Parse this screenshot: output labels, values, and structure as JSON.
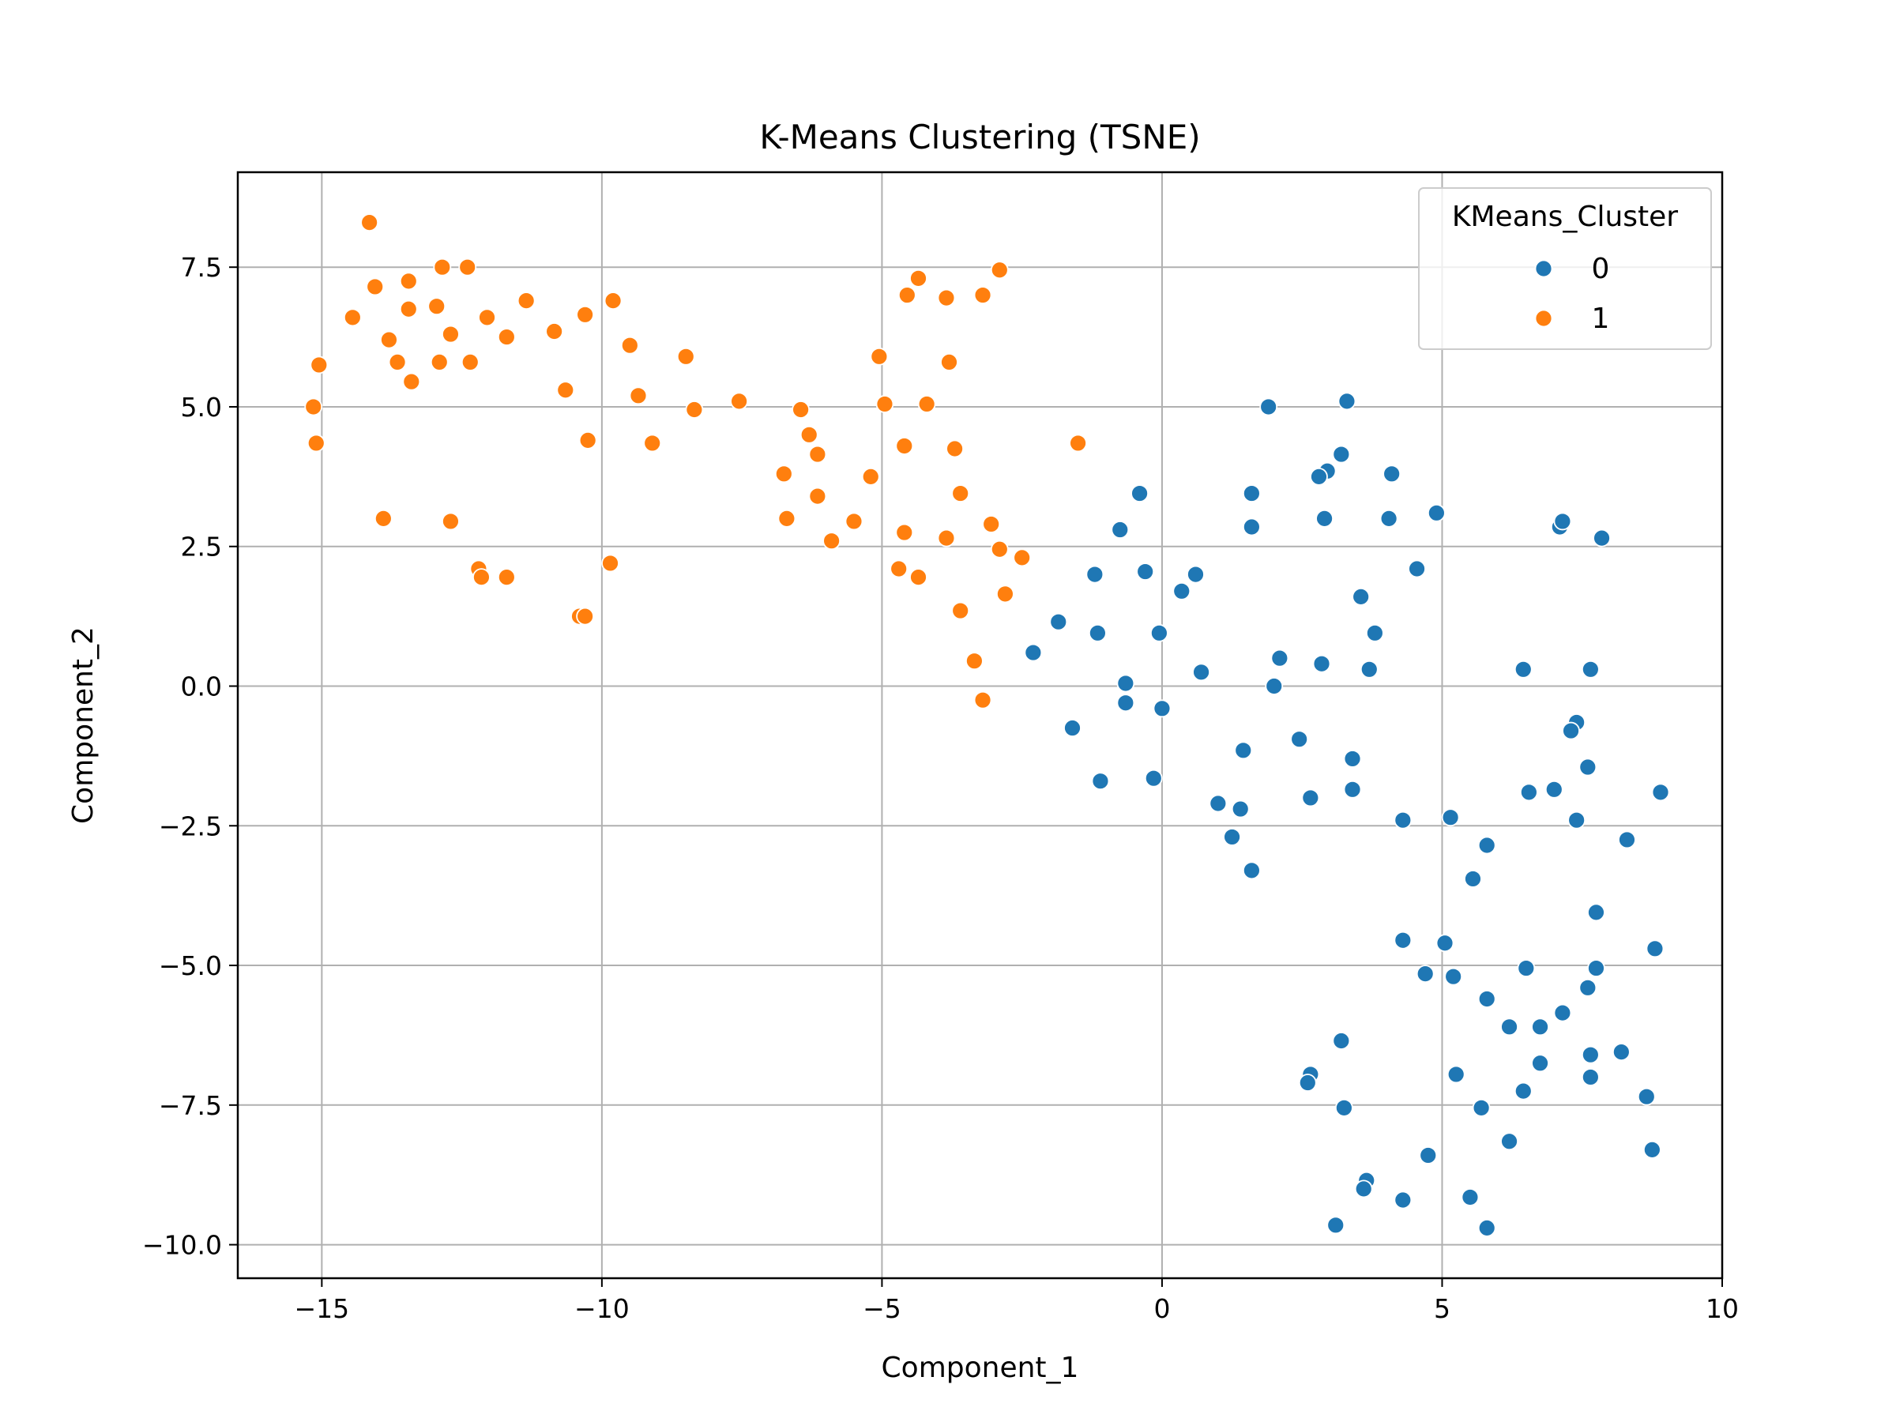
{
  "chart_data": {
    "type": "scatter",
    "title": "K-Means Clustering (TSNE)",
    "xlabel": "Component_1",
    "ylabel": "Component_2",
    "xlim": [
      -16.5,
      10.0
    ],
    "ylim": [
      -10.6,
      9.2
    ],
    "xticks": [
      -15,
      -10,
      -5,
      0,
      5,
      10
    ],
    "xtick_labels": [
      "−15",
      "−10",
      "−5",
      "0",
      "5",
      "10"
    ],
    "yticks": [
      -10.0,
      -7.5,
      -5.0,
      -2.5,
      0.0,
      2.5,
      5.0,
      7.5
    ],
    "ytick_labels": [
      "−10.0",
      "−7.5",
      "−5.0",
      "−2.5",
      "0.0",
      "2.5",
      "5.0",
      "7.5"
    ],
    "grid": true,
    "legend": {
      "title": "KMeans_Cluster",
      "placement": "upper-right"
    },
    "series": [
      {
        "name": "0",
        "color": "#1f77b4",
        "points": [
          [
            1.9,
            5.0
          ],
          [
            3.3,
            5.1
          ],
          [
            3.2,
            4.15
          ],
          [
            2.95,
            3.85
          ],
          [
            2.8,
            3.75
          ],
          [
            4.1,
            3.8
          ],
          [
            1.6,
            3.45
          ],
          [
            1.6,
            2.85
          ],
          [
            2.9,
            3.0
          ],
          [
            4.05,
            3.0
          ],
          [
            4.9,
            3.1
          ],
          [
            -0.4,
            3.45
          ],
          [
            -0.75,
            2.8
          ],
          [
            -1.2,
            2.0
          ],
          [
            -0.3,
            2.05
          ],
          [
            0.6,
            2.0
          ],
          [
            0.35,
            1.7
          ],
          [
            4.55,
            2.1
          ],
          [
            7.1,
            2.85
          ],
          [
            7.15,
            2.95
          ],
          [
            7.85,
            2.65
          ],
          [
            3.55,
            1.6
          ],
          [
            3.8,
            0.95
          ],
          [
            -1.85,
            1.15
          ],
          [
            -1.15,
            0.95
          ],
          [
            -0.05,
            0.95
          ],
          [
            -2.3,
            0.6
          ],
          [
            2.1,
            0.5
          ],
          [
            2.85,
            0.4
          ],
          [
            3.7,
            0.3
          ],
          [
            0.7,
            0.25
          ],
          [
            6.45,
            0.3
          ],
          [
            7.65,
            0.3
          ],
          [
            -0.65,
            0.05
          ],
          [
            -0.65,
            -0.3
          ],
          [
            0.0,
            -0.4
          ],
          [
            2.0,
            0.0
          ],
          [
            -1.6,
            -0.75
          ],
          [
            7.4,
            -0.65
          ],
          [
            7.3,
            -0.8
          ],
          [
            1.45,
            -1.15
          ],
          [
            2.45,
            -0.95
          ],
          [
            3.4,
            -1.3
          ],
          [
            -1.1,
            -1.7
          ],
          [
            -0.15,
            -1.65
          ],
          [
            3.4,
            -1.85
          ],
          [
            2.65,
            -2.0
          ],
          [
            6.55,
            -1.9
          ],
          [
            7.0,
            -1.85
          ],
          [
            7.6,
            -1.45
          ],
          [
            8.9,
            -1.9
          ],
          [
            1.0,
            -2.1
          ],
          [
            1.4,
            -2.2
          ],
          [
            1.25,
            -2.7
          ],
          [
            4.3,
            -2.4
          ],
          [
            5.15,
            -2.35
          ],
          [
            7.4,
            -2.4
          ],
          [
            8.3,
            -2.75
          ],
          [
            5.8,
            -2.85
          ],
          [
            1.6,
            -3.3
          ],
          [
            5.55,
            -3.45
          ],
          [
            7.75,
            -4.05
          ],
          [
            4.3,
            -4.55
          ],
          [
            5.05,
            -4.6
          ],
          [
            8.8,
            -4.7
          ],
          [
            4.7,
            -5.15
          ],
          [
            5.2,
            -5.2
          ],
          [
            6.5,
            -5.05
          ],
          [
            7.75,
            -5.05
          ],
          [
            5.8,
            -5.6
          ],
          [
            7.6,
            -5.4
          ],
          [
            7.15,
            -5.85
          ],
          [
            6.2,
            -6.1
          ],
          [
            6.75,
            -6.1
          ],
          [
            3.2,
            -6.35
          ],
          [
            8.2,
            -6.55
          ],
          [
            7.65,
            -6.6
          ],
          [
            6.75,
            -6.75
          ],
          [
            5.25,
            -6.95
          ],
          [
            2.65,
            -6.95
          ],
          [
            2.6,
            -7.1
          ],
          [
            6.45,
            -7.25
          ],
          [
            7.65,
            -7.0
          ],
          [
            8.65,
            -7.35
          ],
          [
            3.25,
            -7.55
          ],
          [
            5.7,
            -7.55
          ],
          [
            6.2,
            -8.15
          ],
          [
            8.75,
            -8.3
          ],
          [
            4.75,
            -8.4
          ],
          [
            3.65,
            -8.85
          ],
          [
            3.6,
            -9.0
          ],
          [
            4.3,
            -9.2
          ],
          [
            5.5,
            -9.15
          ],
          [
            3.1,
            -9.65
          ],
          [
            5.8,
            -9.7
          ]
        ]
      },
      {
        "name": "1",
        "color": "#ff7f0e",
        "points": [
          [
            -14.15,
            8.3
          ],
          [
            -14.05,
            7.15
          ],
          [
            -13.45,
            7.25
          ],
          [
            -12.85,
            7.5
          ],
          [
            -12.4,
            7.5
          ],
          [
            -2.9,
            7.45
          ],
          [
            -4.35,
            7.3
          ],
          [
            -4.55,
            7.0
          ],
          [
            -3.85,
            6.95
          ],
          [
            -3.2,
            7.0
          ],
          [
            -14.45,
            6.6
          ],
          [
            -13.45,
            6.75
          ],
          [
            -12.95,
            6.8
          ],
          [
            -11.35,
            6.9
          ],
          [
            -9.8,
            6.9
          ],
          [
            -12.05,
            6.6
          ],
          [
            -10.3,
            6.65
          ],
          [
            -13.8,
            6.2
          ],
          [
            -12.7,
            6.3
          ],
          [
            -11.7,
            6.25
          ],
          [
            -10.85,
            6.35
          ],
          [
            -9.5,
            6.1
          ],
          [
            -13.65,
            5.8
          ],
          [
            -12.9,
            5.8
          ],
          [
            -12.35,
            5.8
          ],
          [
            -8.5,
            5.9
          ],
          [
            -5.05,
            5.9
          ],
          [
            -3.8,
            5.8
          ],
          [
            -15.05,
            5.75
          ],
          [
            -13.4,
            5.45
          ],
          [
            -10.65,
            5.3
          ],
          [
            -9.35,
            5.2
          ],
          [
            -7.55,
            5.1
          ],
          [
            -8.35,
            4.95
          ],
          [
            -6.45,
            4.95
          ],
          [
            -4.95,
            5.05
          ],
          [
            -4.2,
            5.05
          ],
          [
            -15.15,
            5.0
          ],
          [
            -15.1,
            4.35
          ],
          [
            -10.25,
            4.4
          ],
          [
            -9.1,
            4.35
          ],
          [
            -6.3,
            4.5
          ],
          [
            -6.15,
            4.15
          ],
          [
            -4.6,
            4.3
          ],
          [
            -3.7,
            4.25
          ],
          [
            -1.5,
            4.35
          ],
          [
            -6.75,
            3.8
          ],
          [
            -5.2,
            3.75
          ],
          [
            -6.15,
            3.4
          ],
          [
            -3.6,
            3.45
          ],
          [
            -13.9,
            3.0
          ],
          [
            -12.7,
            2.95
          ],
          [
            -6.7,
            3.0
          ],
          [
            -5.5,
            2.95
          ],
          [
            -3.05,
            2.9
          ],
          [
            -4.6,
            2.75
          ],
          [
            -3.85,
            2.65
          ],
          [
            -5.9,
            2.6
          ],
          [
            -2.9,
            2.45
          ],
          [
            -2.5,
            2.3
          ],
          [
            -9.85,
            2.2
          ],
          [
            -12.2,
            2.1
          ],
          [
            -12.15,
            1.95
          ],
          [
            -11.7,
            1.95
          ],
          [
            -4.7,
            2.1
          ],
          [
            -4.35,
            1.95
          ],
          [
            -2.8,
            1.65
          ],
          [
            -10.4,
            1.25
          ],
          [
            -10.3,
            1.25
          ],
          [
            -3.6,
            1.35
          ],
          [
            -3.35,
            0.45
          ],
          [
            -3.2,
            -0.25
          ]
        ]
      }
    ]
  }
}
